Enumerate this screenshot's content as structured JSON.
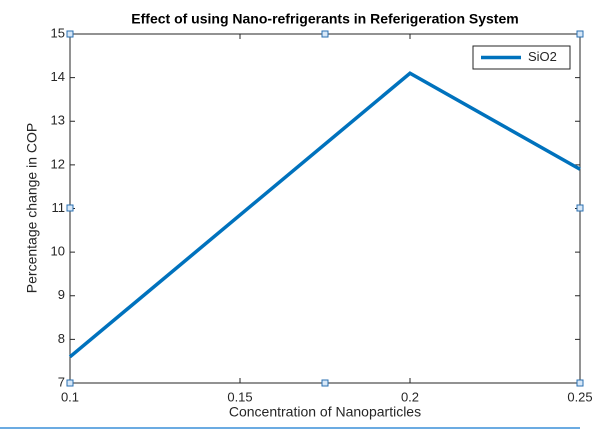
{
  "chart_data": {
    "type": "line",
    "title": "Effect of using Nano-refrigerants in Referigeration System",
    "x_label": "Concentration of Nanoparticles",
    "y_label": "Percentage change in COP",
    "x": [
      0.1,
      0.2,
      0.25
    ],
    "series": [
      {
        "name": "SiO2",
        "color": "#0072bd",
        "values": [
          7.6,
          14.1,
          11.9
        ]
      }
    ],
    "xlim": [
      0.1,
      0.25
    ],
    "xticks": [
      0.1,
      0.15,
      0.2,
      0.25
    ],
    "ylim": [
      7,
      15
    ],
    "yticks": [
      7,
      8,
      9,
      10,
      11,
      12,
      13,
      14,
      15
    ],
    "grid": false,
    "legend": "northeast"
  }
}
